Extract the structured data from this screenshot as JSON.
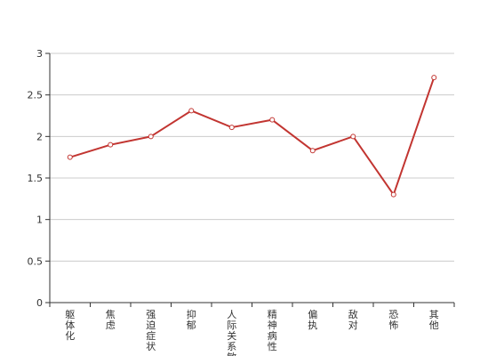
{
  "chart_data": {
    "type": "line",
    "categories": [
      "躯体化",
      "焦虑",
      "强迫症状",
      "抑郁",
      "人际关系敏感",
      "精神病性",
      "偏执",
      "敌对",
      "恐怖",
      "其他"
    ],
    "series": [
      {
        "values": [
          1.75,
          1.9,
          2.0,
          2.31,
          2.11,
          2.2,
          1.83,
          2.0,
          1.3,
          2.71
        ]
      }
    ],
    "ylim": [
      0,
      3
    ],
    "yticks": [
      "0",
      "0.5",
      "1",
      "1.5",
      "2",
      "2.5",
      "3"
    ],
    "grid": true,
    "colors": {
      "line": "#c23531",
      "grid": "#cccccc",
      "axis": "#333333",
      "marker_fill": "#ffffff"
    }
  }
}
